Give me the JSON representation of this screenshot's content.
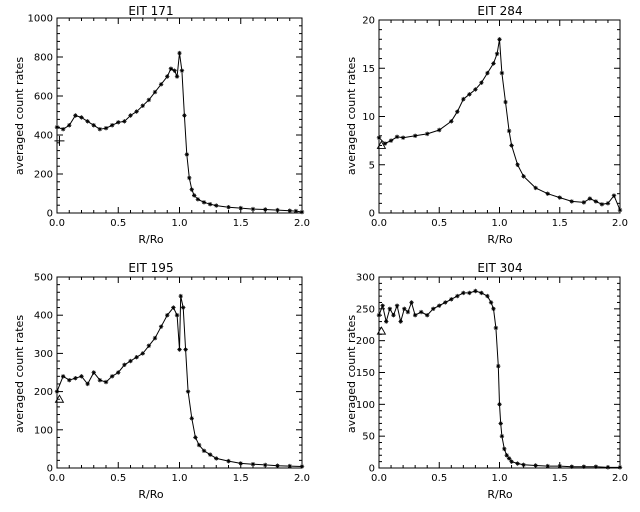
{
  "chart_data": [
    {
      "type": "line",
      "title": "EIT 171",
      "xlabel": "R/Ro",
      "ylabel": "averaged count rates",
      "xlim": [
        0.0,
        2.0
      ],
      "ylim": [
        0,
        1000
      ],
      "xticks": [
        "0.0",
        "0.5",
        "1.0",
        "1.5",
        "2.0"
      ],
      "yticks": [
        "0",
        "200",
        "400",
        "600",
        "800",
        "1000"
      ],
      "grid": false,
      "series": [
        {
          "x": [
            0.0,
            0.05,
            0.1,
            0.15,
            0.2,
            0.25,
            0.3,
            0.35,
            0.4,
            0.45,
            0.5,
            0.55,
            0.6,
            0.65,
            0.7,
            0.75,
            0.8,
            0.85,
            0.9,
            0.93,
            0.96,
            0.98,
            1.0,
            1.02,
            1.04,
            1.06,
            1.08,
            1.1,
            1.12,
            1.15,
            1.2,
            1.25,
            1.3,
            1.4,
            1.5,
            1.6,
            1.7,
            1.8,
            1.9,
            1.95,
            2.0
          ],
          "y": [
            440,
            430,
            450,
            500,
            490,
            470,
            450,
            430,
            435,
            450,
            465,
            470,
            500,
            520,
            550,
            580,
            620,
            660,
            700,
            740,
            730,
            700,
            820,
            730,
            500,
            300,
            180,
            120,
            90,
            70,
            55,
            45,
            38,
            30,
            25,
            20,
            18,
            15,
            12,
            10,
            5
          ]
        }
      ],
      "markers": [
        {
          "x": 0.02,
          "y": 370,
          "symbol": "plus"
        }
      ]
    },
    {
      "type": "line",
      "title": "EIT 284",
      "xlabel": "R/Ro",
      "ylabel": "averaged count rates",
      "xlim": [
        0.0,
        2.0
      ],
      "ylim": [
        0,
        20
      ],
      "xticks": [
        "0.0",
        "0.5",
        "1.0",
        "1.5",
        "2.0"
      ],
      "yticks": [
        "0",
        "5",
        "10",
        "15",
        "20"
      ],
      "grid": false,
      "series": [
        {
          "x": [
            0.0,
            0.05,
            0.1,
            0.15,
            0.2,
            0.3,
            0.4,
            0.5,
            0.6,
            0.65,
            0.7,
            0.75,
            0.8,
            0.85,
            0.9,
            0.95,
            0.98,
            1.0,
            1.02,
            1.05,
            1.08,
            1.1,
            1.15,
            1.2,
            1.3,
            1.4,
            1.5,
            1.6,
            1.7,
            1.75,
            1.8,
            1.85,
            1.9,
            1.95,
            2.0
          ],
          "y": [
            7.8,
            7.2,
            7.5,
            7.9,
            7.8,
            8.0,
            8.2,
            8.6,
            9.5,
            10.5,
            11.8,
            12.3,
            12.8,
            13.5,
            14.5,
            15.5,
            16.5,
            18.0,
            14.5,
            11.5,
            8.5,
            7.0,
            5.0,
            3.8,
            2.6,
            2.0,
            1.6,
            1.2,
            1.1,
            1.5,
            1.2,
            0.9,
            1.0,
            1.8,
            0.3
          ]
        }
      ],
      "markers": [
        {
          "x": 0.02,
          "y": 7.0,
          "symbol": "triangle"
        }
      ]
    },
    {
      "type": "line",
      "title": "EIT 195",
      "xlabel": "R/Ro",
      "ylabel": "averaged count rates",
      "xlim": [
        0.0,
        2.0
      ],
      "ylim": [
        0,
        500
      ],
      "xticks": [
        "0.0",
        "0.5",
        "1.0",
        "1.5",
        "2.0"
      ],
      "yticks": [
        "0",
        "100",
        "200",
        "300",
        "400",
        "500"
      ],
      "grid": false,
      "series": [
        {
          "x": [
            0.0,
            0.05,
            0.1,
            0.15,
            0.2,
            0.25,
            0.3,
            0.35,
            0.4,
            0.45,
            0.5,
            0.55,
            0.6,
            0.65,
            0.7,
            0.75,
            0.8,
            0.85,
            0.9,
            0.95,
            0.98,
            1.0,
            1.01,
            1.03,
            1.05,
            1.07,
            1.1,
            1.13,
            1.16,
            1.2,
            1.25,
            1.3,
            1.4,
            1.5,
            1.6,
            1.7,
            1.8,
            1.9,
            2.0
          ],
          "y": [
            200,
            240,
            230,
            235,
            240,
            220,
            250,
            230,
            225,
            240,
            250,
            270,
            280,
            290,
            300,
            320,
            340,
            370,
            400,
            420,
            400,
            310,
            450,
            420,
            310,
            200,
            130,
            80,
            60,
            45,
            35,
            25,
            18,
            12,
            10,
            8,
            6,
            5,
            4
          ]
        }
      ],
      "markers": [
        {
          "x": 0.02,
          "y": 180,
          "symbol": "triangle"
        }
      ]
    },
    {
      "type": "line",
      "title": "EIT 304",
      "xlabel": "R/Ro",
      "ylabel": "averaged count rates",
      "xlim": [
        0.0,
        2.0
      ],
      "ylim": [
        0,
        300
      ],
      "xticks": [
        "0.0",
        "0.5",
        "1.0",
        "1.5",
        "2.0"
      ],
      "yticks": [
        "0",
        "50",
        "100",
        "150",
        "200",
        "250",
        "300"
      ],
      "grid": false,
      "series": [
        {
          "x": [
            0.0,
            0.03,
            0.06,
            0.09,
            0.12,
            0.15,
            0.18,
            0.21,
            0.24,
            0.27,
            0.3,
            0.35,
            0.4,
            0.45,
            0.5,
            0.55,
            0.6,
            0.65,
            0.7,
            0.75,
            0.8,
            0.85,
            0.9,
            0.93,
            0.95,
            0.97,
            0.99,
            1.0,
            1.01,
            1.02,
            1.04,
            1.06,
            1.08,
            1.1,
            1.15,
            1.2,
            1.3,
            1.4,
            1.5,
            1.6,
            1.7,
            1.8,
            1.9,
            2.0
          ],
          "y": [
            240,
            255,
            230,
            250,
            240,
            255,
            230,
            250,
            245,
            260,
            240,
            245,
            240,
            250,
            255,
            260,
            265,
            270,
            275,
            275,
            278,
            275,
            270,
            260,
            250,
            220,
            160,
            100,
            70,
            50,
            30,
            20,
            15,
            10,
            7,
            5,
            4,
            3,
            3,
            2,
            2,
            2,
            1,
            1
          ]
        }
      ],
      "markers": [
        {
          "x": 0.02,
          "y": 215,
          "symbol": "triangle"
        }
      ]
    }
  ]
}
